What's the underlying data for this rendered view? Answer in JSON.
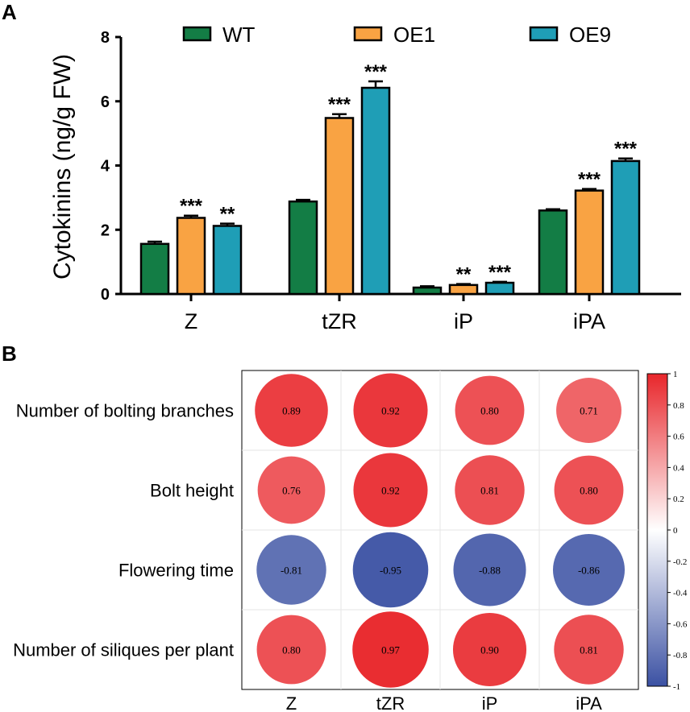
{
  "colors": {
    "WT": "#137d45",
    "OE1": "#f9a343",
    "OE9": "#1f9eb6",
    "positive": "#e8262b",
    "negative": "#3b51a3"
  },
  "chart_data": [
    {
      "panel": "A",
      "type": "bar",
      "title": "",
      "xlabel": "",
      "ylabel": "Cytokinins (ng/g FW)",
      "ylim": [
        0,
        8
      ],
      "yticks": [
        "0",
        "2",
        "4",
        "6",
        "8"
      ],
      "categories": [
        "Z",
        "tZR",
        "iP",
        "iPA"
      ],
      "legend_position": "top",
      "series": [
        {
          "name": "WT",
          "values": [
            1.56,
            2.88,
            0.2,
            2.6
          ],
          "errors": [
            0.07,
            0.05,
            0.04,
            0.04
          ],
          "significance": [
            "",
            "",
            "",
            ""
          ]
        },
        {
          "name": "OE1",
          "values": [
            2.37,
            5.48,
            0.28,
            3.22
          ],
          "errors": [
            0.07,
            0.12,
            0.03,
            0.05
          ],
          "significance": [
            "***",
            "***",
            "**",
            "***"
          ]
        },
        {
          "name": "OE9",
          "values": [
            2.12,
            6.42,
            0.35,
            4.14
          ],
          "errors": [
            0.07,
            0.2,
            0.03,
            0.08
          ],
          "significance": [
            "**",
            "***",
            "***",
            "***"
          ]
        }
      ]
    },
    {
      "panel": "B",
      "type": "heatmap",
      "title": "",
      "rows": [
        "Number of bolting branches",
        "Bolt height",
        "Flowering time",
        "Number of siliques per plant"
      ],
      "columns": [
        "Z",
        "tZR",
        "iP",
        "iPA"
      ],
      "values": [
        [
          0.89,
          0.92,
          0.8,
          0.71
        ],
        [
          0.76,
          0.92,
          0.81,
          0.8
        ],
        [
          -0.81,
          -0.95,
          -0.88,
          -0.86
        ],
        [
          0.8,
          0.97,
          0.9,
          0.81
        ]
      ],
      "value_labels": [
        [
          "0.89",
          "0.92",
          "0.80",
          "0.71"
        ],
        [
          "0.76",
          "0.92",
          "0.81",
          "0.80"
        ],
        [
          "-0.81",
          "-0.95",
          "-0.88",
          "-0.86"
        ],
        [
          "0.80",
          "0.97",
          "0.90",
          "0.81"
        ]
      ],
      "colorbar": {
        "range": [
          -1,
          1
        ],
        "ticks": [
          "1",
          "0.8",
          "0.6",
          "0.4",
          "0.2",
          "0",
          "-0.2",
          "-0.4",
          "-0.6",
          "-0.8",
          "-1"
        ]
      }
    }
  ]
}
